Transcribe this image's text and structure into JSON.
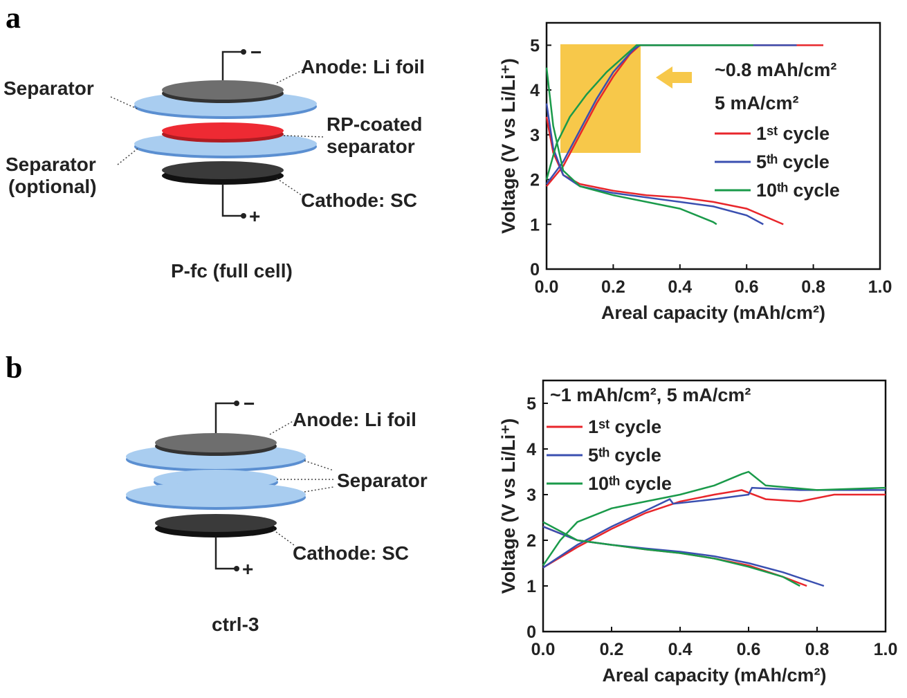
{
  "diagrams": [
    {
      "label": "a",
      "minus": "−",
      "plus": "+",
      "separator": "Separator",
      "anode": "Anode: Li foil",
      "rp_coated": [
        "RP-coated",
        "separator"
      ],
      "separator_optional": [
        "Separator",
        "(optional)"
      ],
      "cathode": "Cathode: SC",
      "caption": "P-fc (full cell)"
    },
    {
      "label": "b",
      "minus": "−",
      "plus": "+",
      "anode": "Anode: Li foil",
      "separator": "Separator",
      "cathode": "Cathode: SC",
      "caption": "ctrl-3"
    }
  ],
  "chart_data": [
    {
      "type": "line",
      "xlabel": "Areal capacity (mAh/cm²)",
      "ylabel": "Voltage (V vs Li/Li⁺)",
      "annotations": [
        "~0.8 mAh/cm²",
        "5 mA/cm²"
      ],
      "xlim": [
        0,
        1
      ],
      "ylim": [
        0,
        5.5
      ],
      "xticks": [
        {
          "value": 0,
          "label": "0.0"
        },
        0.2,
        0.4,
        0.6,
        0.8,
        {
          "value": 1,
          "label": "1.0"
        }
      ],
      "yticks": [
        0,
        1,
        2,
        3,
        4,
        5
      ],
      "series": [
        {
          "name": "1ˢᵗ cycle",
          "color": "#e8262b",
          "x": [
            0,
            0.05,
            0.1,
            0.15,
            0.2,
            0.25,
            0.28,
            0.5,
            0.83,
            null,
            0,
            0.02,
            0.05,
            0.1,
            0.2,
            0.3,
            0.4,
            0.5,
            0.6,
            0.71
          ],
          "values": [
            1.85,
            2.3,
            3.0,
            3.7,
            4.3,
            4.8,
            5.0,
            5.0,
            5.0,
            null,
            3.4,
            2.6,
            2.1,
            1.9,
            1.75,
            1.65,
            1.6,
            1.5,
            1.35,
            1.0
          ]
        },
        {
          "name": "5ᵗʰ cycle",
          "color": "#3a4fb0",
          "x": [
            0,
            0.05,
            0.1,
            0.15,
            0.2,
            0.26,
            0.28,
            0.75,
            null,
            0,
            0.02,
            0.05,
            0.1,
            0.2,
            0.3,
            0.4,
            0.5,
            0.6,
            0.65
          ],
          "values": [
            1.9,
            2.4,
            3.1,
            3.8,
            4.4,
            4.9,
            5.0,
            5.0,
            null,
            3.7,
            2.7,
            2.1,
            1.85,
            1.7,
            1.6,
            1.5,
            1.4,
            1.2,
            1.0
          ]
        },
        {
          "name": "10ᵗʰ cycle",
          "color": "#1a9a4a",
          "x": [
            0,
            0.03,
            0.07,
            0.12,
            0.18,
            0.24,
            0.27,
            0.62,
            null,
            0,
            0.02,
            0.05,
            0.1,
            0.2,
            0.3,
            0.4,
            0.5,
            0.51
          ],
          "values": [
            2.0,
            2.8,
            3.4,
            3.9,
            4.4,
            4.8,
            5.0,
            5.0,
            null,
            4.5,
            3.2,
            2.2,
            1.85,
            1.65,
            1.5,
            1.35,
            1.05,
            1.0
          ]
        }
      ]
    },
    {
      "type": "line",
      "xlabel": "Areal capacity (mAh/cm²)",
      "ylabel": "Voltage (V vs Li/Li⁺)",
      "annotations": [
        "~1 mAh/cm², 5 mA/cm²"
      ],
      "xlim": [
        0,
        1
      ],
      "ylim": [
        0,
        5.5
      ],
      "xticks": [
        {
          "value": 0,
          "label": "0.0"
        },
        0.2,
        0.4,
        0.6,
        0.8,
        {
          "value": 1,
          "label": "1.0"
        }
      ],
      "yticks": [
        0,
        1,
        2,
        3,
        4,
        5
      ],
      "series": [
        {
          "name": "1ˢᵗ cycle",
          "color": "#e8262b",
          "x": [
            0,
            0.1,
            0.2,
            0.3,
            0.4,
            0.5,
            0.58,
            0.65,
            0.75,
            0.85,
            1.0,
            null,
            0,
            0.1,
            0.2,
            0.3,
            0.4,
            0.5,
            0.6,
            0.7,
            0.77
          ],
          "values": [
            1.4,
            1.85,
            2.25,
            2.6,
            2.85,
            3.0,
            3.1,
            2.9,
            2.85,
            3.0,
            3.0,
            null,
            2.3,
            2.0,
            1.9,
            1.8,
            1.72,
            1.6,
            1.45,
            1.2,
            1.0
          ]
        },
        {
          "name": "5ᵗʰ cycle",
          "color": "#3a4fb0",
          "x": [
            0,
            0.1,
            0.2,
            0.3,
            0.37,
            0.38,
            0.5,
            0.6,
            0.61,
            0.75,
            0.9,
            1.0,
            null,
            0,
            0.1,
            0.2,
            0.3,
            0.4,
            0.5,
            0.6,
            0.7,
            0.82
          ],
          "values": [
            1.4,
            1.9,
            2.3,
            2.65,
            2.9,
            2.8,
            2.9,
            3.0,
            3.15,
            3.1,
            3.1,
            3.1,
            null,
            2.3,
            2.0,
            1.9,
            1.82,
            1.75,
            1.65,
            1.5,
            1.3,
            1.0
          ]
        },
        {
          "name": "10ᵗʰ cycle",
          "color": "#1a9a4a",
          "x": [
            0,
            0.05,
            0.1,
            0.2,
            0.3,
            0.4,
            0.5,
            0.58,
            0.6,
            0.65,
            0.8,
            1.0,
            null,
            0,
            0.1,
            0.2,
            0.3,
            0.4,
            0.5,
            0.6,
            0.7,
            0.75
          ],
          "values": [
            1.45,
            2.0,
            2.4,
            2.7,
            2.85,
            3.0,
            3.2,
            3.45,
            3.5,
            3.2,
            3.1,
            3.15,
            null,
            2.4,
            2.0,
            1.9,
            1.8,
            1.72,
            1.6,
            1.42,
            1.2,
            1.0
          ]
        }
      ]
    }
  ]
}
